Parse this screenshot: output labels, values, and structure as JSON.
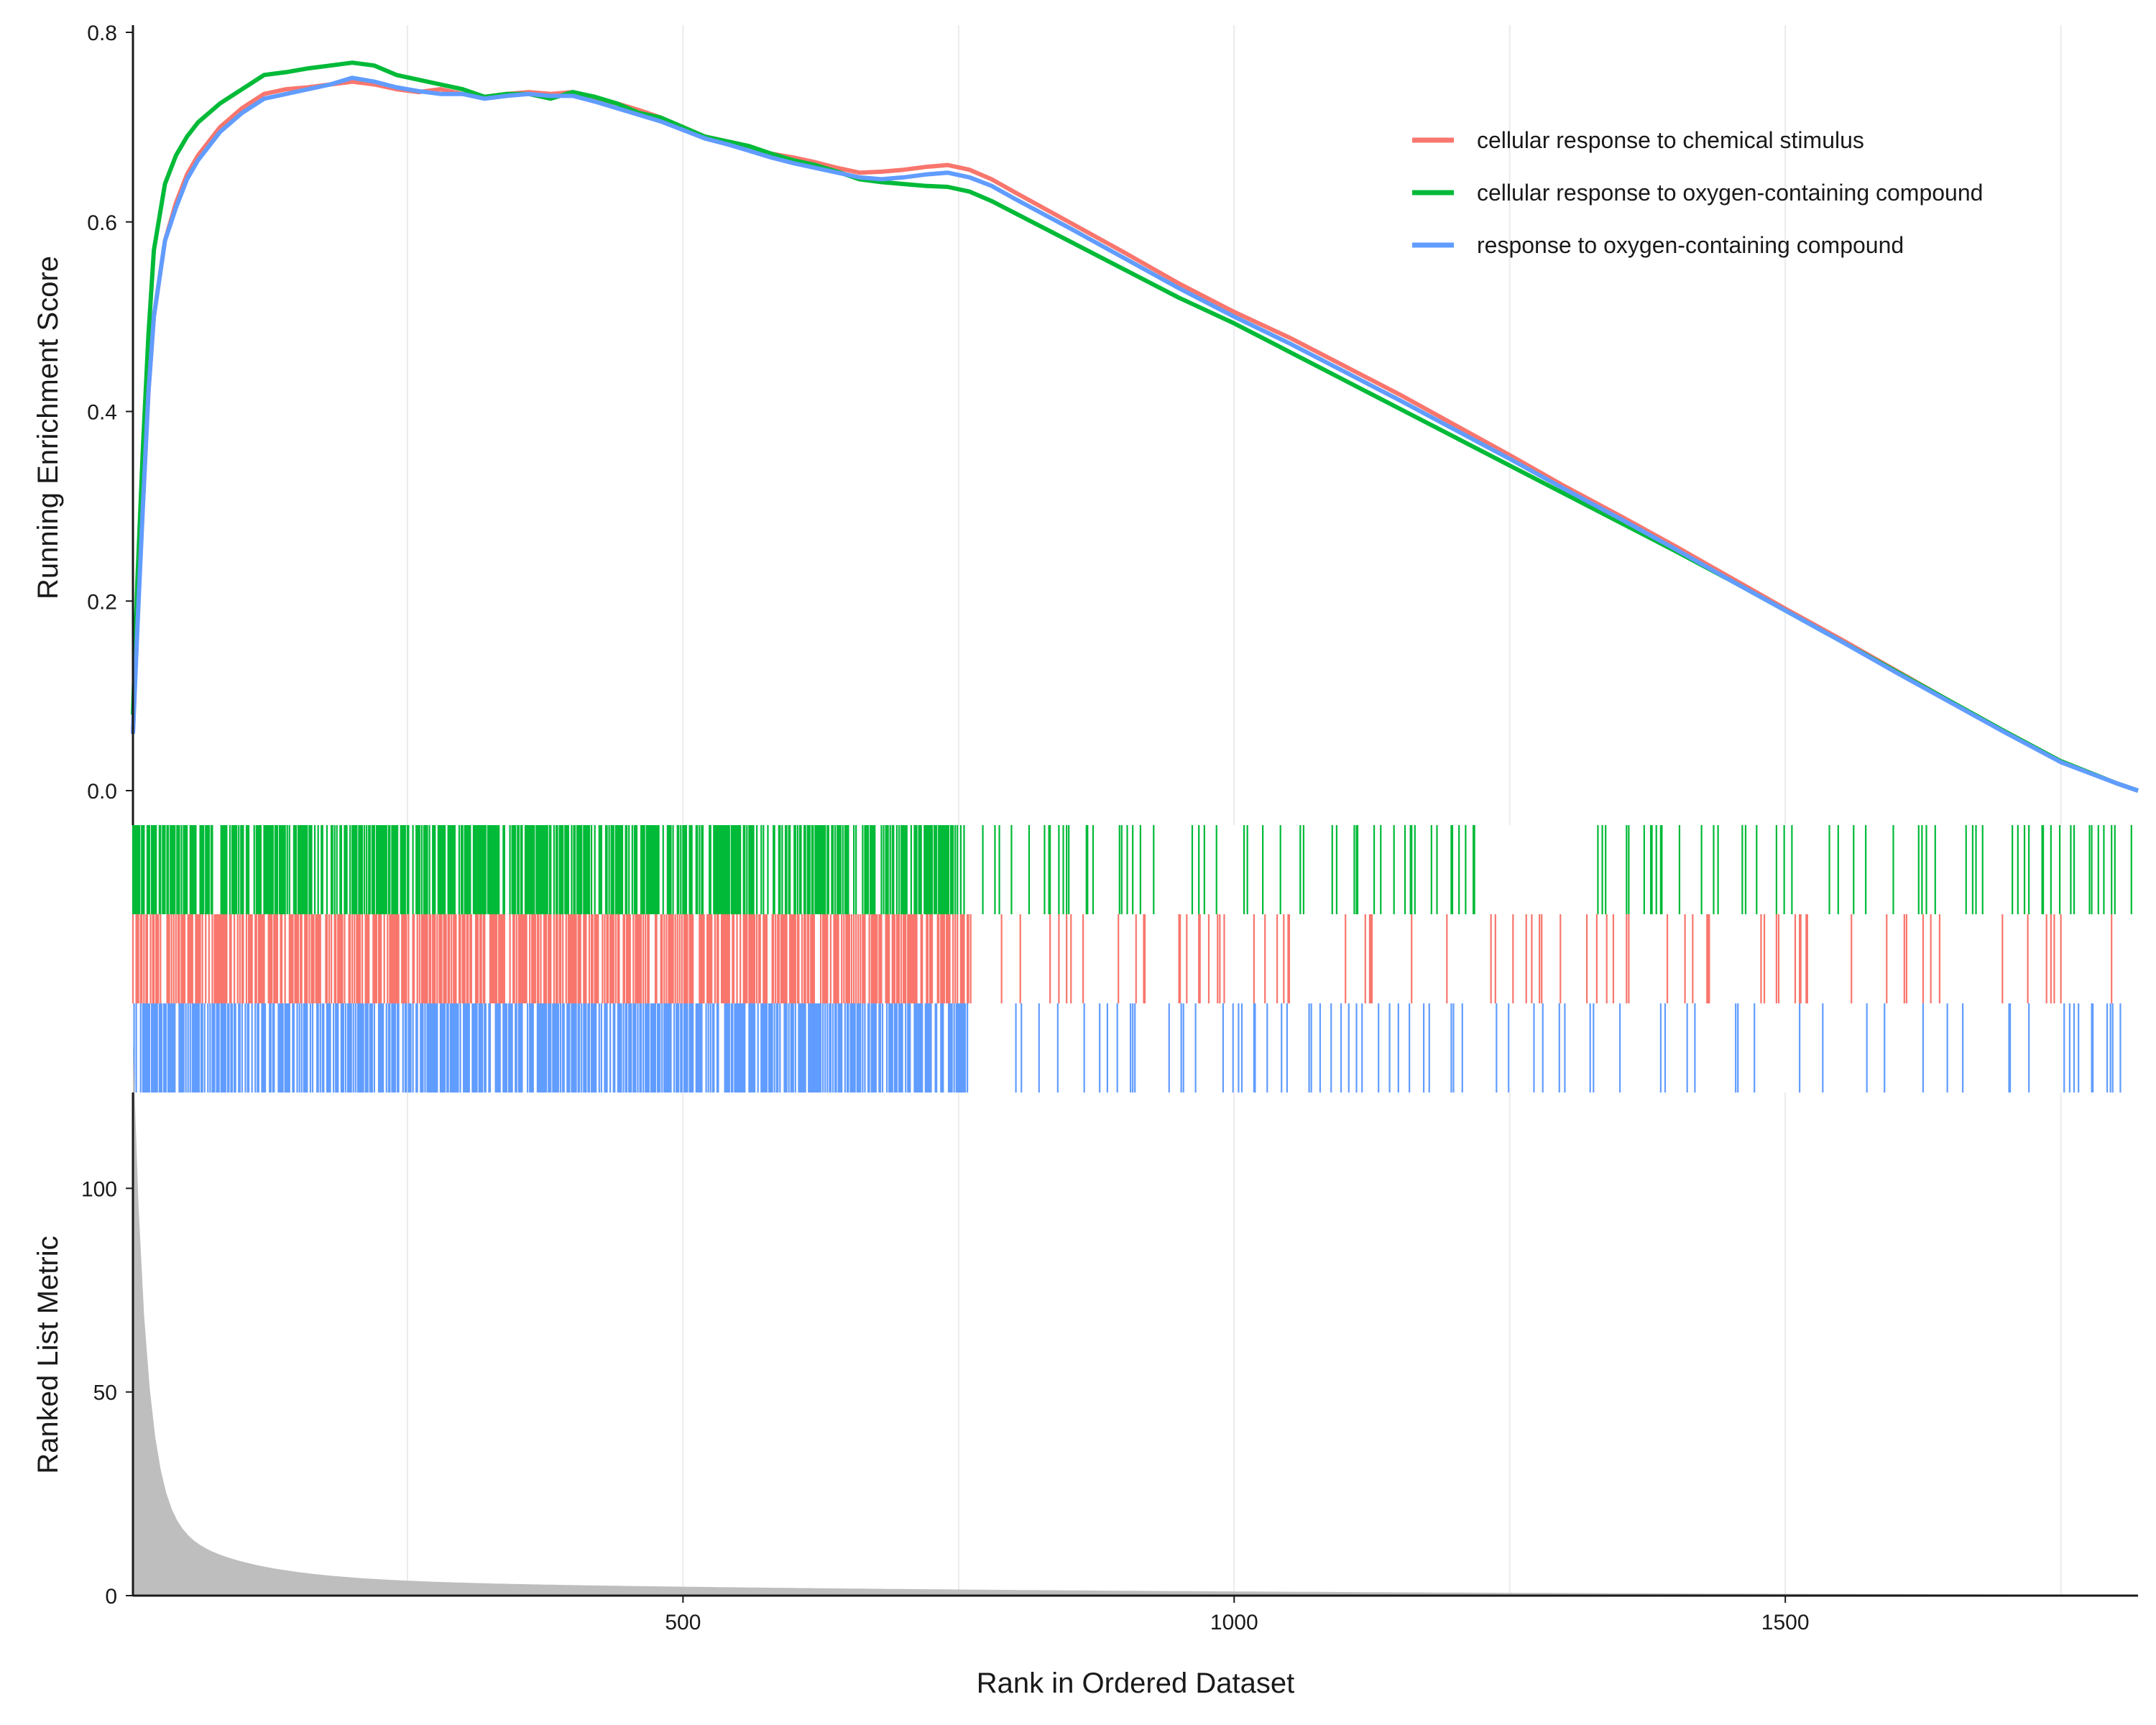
{
  "chart_data": {
    "type": "line",
    "xlabel": "Rank in Ordered Dataset",
    "xlim": [
      1,
      1820
    ],
    "x_ticks": [
      500,
      1000,
      1500
    ],
    "panels": {
      "enrichment": {
        "ylabel": "Running Enrichment Score",
        "ylim": [
          0,
          0.8
        ],
        "y_ticks": [
          0.0,
          0.2,
          0.4,
          0.6,
          0.8
        ]
      },
      "metric": {
        "ylabel": "Ranked List Metric",
        "ylim": [
          0,
          120
        ],
        "y_ticks": [
          0,
          50,
          100
        ],
        "fill_color": "#bebebe"
      }
    },
    "legend_position": "top-right",
    "series": [
      {
        "name": "cellular response to chemical stimulus",
        "color": "#F8766D",
        "x": [
          1,
          5,
          10,
          15,
          20,
          30,
          40,
          50,
          60,
          70,
          80,
          100,
          120,
          140,
          160,
          180,
          200,
          220,
          240,
          260,
          280,
          300,
          320,
          340,
          360,
          380,
          400,
          420,
          440,
          460,
          480,
          500,
          520,
          540,
          560,
          580,
          600,
          620,
          640,
          660,
          680,
          700,
          720,
          740,
          760,
          780,
          800,
          850,
          900,
          950,
          1000,
          1050,
          1100,
          1150,
          1200,
          1250,
          1300,
          1350,
          1400,
          1450,
          1500,
          1550,
          1600,
          1650,
          1700,
          1750,
          1800,
          1820
        ],
        "y": [
          0.06,
          0.18,
          0.3,
          0.42,
          0.5,
          0.58,
          0.62,
          0.65,
          0.67,
          0.685,
          0.7,
          0.72,
          0.735,
          0.74,
          0.742,
          0.745,
          0.748,
          0.745,
          0.74,
          0.737,
          0.74,
          0.735,
          0.732,
          0.735,
          0.737,
          0.735,
          0.737,
          0.73,
          0.725,
          0.718,
          0.71,
          0.7,
          0.69,
          0.685,
          0.68,
          0.672,
          0.668,
          0.663,
          0.657,
          0.652,
          0.653,
          0.655,
          0.658,
          0.66,
          0.655,
          0.645,
          0.632,
          0.6,
          0.568,
          0.535,
          0.505,
          0.478,
          0.448,
          0.418,
          0.386,
          0.354,
          0.321,
          0.29,
          0.258,
          0.225,
          0.192,
          0.16,
          0.127,
          0.094,
          0.062,
          0.031,
          0.008,
          0.0
        ]
      },
      {
        "name": "cellular response to oxygen-containing compound",
        "color": "#00BA38",
        "x": [
          1,
          5,
          10,
          15,
          20,
          30,
          40,
          50,
          60,
          70,
          80,
          100,
          120,
          140,
          160,
          180,
          200,
          220,
          240,
          260,
          280,
          300,
          320,
          340,
          360,
          380,
          400,
          420,
          440,
          460,
          480,
          500,
          520,
          540,
          560,
          580,
          600,
          620,
          640,
          660,
          680,
          700,
          720,
          740,
          760,
          780,
          800,
          850,
          900,
          950,
          1000,
          1050,
          1100,
          1150,
          1200,
          1250,
          1300,
          1350,
          1400,
          1450,
          1500,
          1550,
          1600,
          1650,
          1700,
          1750,
          1800,
          1820
        ],
        "y": [
          0.08,
          0.22,
          0.36,
          0.48,
          0.57,
          0.64,
          0.67,
          0.69,
          0.705,
          0.715,
          0.725,
          0.74,
          0.755,
          0.758,
          0.762,
          0.765,
          0.768,
          0.765,
          0.755,
          0.75,
          0.745,
          0.74,
          0.732,
          0.735,
          0.735,
          0.73,
          0.737,
          0.732,
          0.725,
          0.715,
          0.71,
          0.7,
          0.69,
          0.685,
          0.68,
          0.672,
          0.665,
          0.66,
          0.653,
          0.645,
          0.642,
          0.64,
          0.638,
          0.637,
          0.632,
          0.622,
          0.61,
          0.58,
          0.55,
          0.52,
          0.493,
          0.463,
          0.433,
          0.403,
          0.373,
          0.343,
          0.313,
          0.283,
          0.253,
          0.222,
          0.19,
          0.158,
          0.126,
          0.094,
          0.062,
          0.031,
          0.008,
          0.0
        ]
      },
      {
        "name": "response to oxygen-containing compound",
        "color": "#619CFF",
        "x": [
          1,
          5,
          10,
          15,
          20,
          30,
          40,
          50,
          60,
          70,
          80,
          100,
          120,
          140,
          160,
          180,
          200,
          220,
          240,
          260,
          280,
          300,
          320,
          340,
          360,
          380,
          400,
          420,
          440,
          460,
          480,
          500,
          520,
          540,
          560,
          580,
          600,
          620,
          640,
          660,
          680,
          700,
          720,
          740,
          760,
          780,
          800,
          850,
          900,
          950,
          1000,
          1050,
          1100,
          1150,
          1200,
          1250,
          1300,
          1350,
          1400,
          1450,
          1500,
          1550,
          1600,
          1650,
          1700,
          1750,
          1800,
          1820
        ],
        "y": [
          0.06,
          0.17,
          0.3,
          0.42,
          0.5,
          0.58,
          0.615,
          0.645,
          0.665,
          0.68,
          0.695,
          0.715,
          0.73,
          0.735,
          0.74,
          0.745,
          0.752,
          0.748,
          0.742,
          0.738,
          0.735,
          0.735,
          0.73,
          0.733,
          0.735,
          0.733,
          0.733,
          0.727,
          0.72,
          0.713,
          0.706,
          0.697,
          0.688,
          0.682,
          0.675,
          0.668,
          0.662,
          0.657,
          0.652,
          0.647,
          0.645,
          0.647,
          0.65,
          0.652,
          0.647,
          0.638,
          0.625,
          0.594,
          0.562,
          0.53,
          0.5,
          0.472,
          0.442,
          0.412,
          0.381,
          0.35,
          0.318,
          0.287,
          0.255,
          0.222,
          0.19,
          0.158,
          0.125,
          0.093,
          0.061,
          0.03,
          0.008,
          0.0
        ]
      }
    ]
  }
}
